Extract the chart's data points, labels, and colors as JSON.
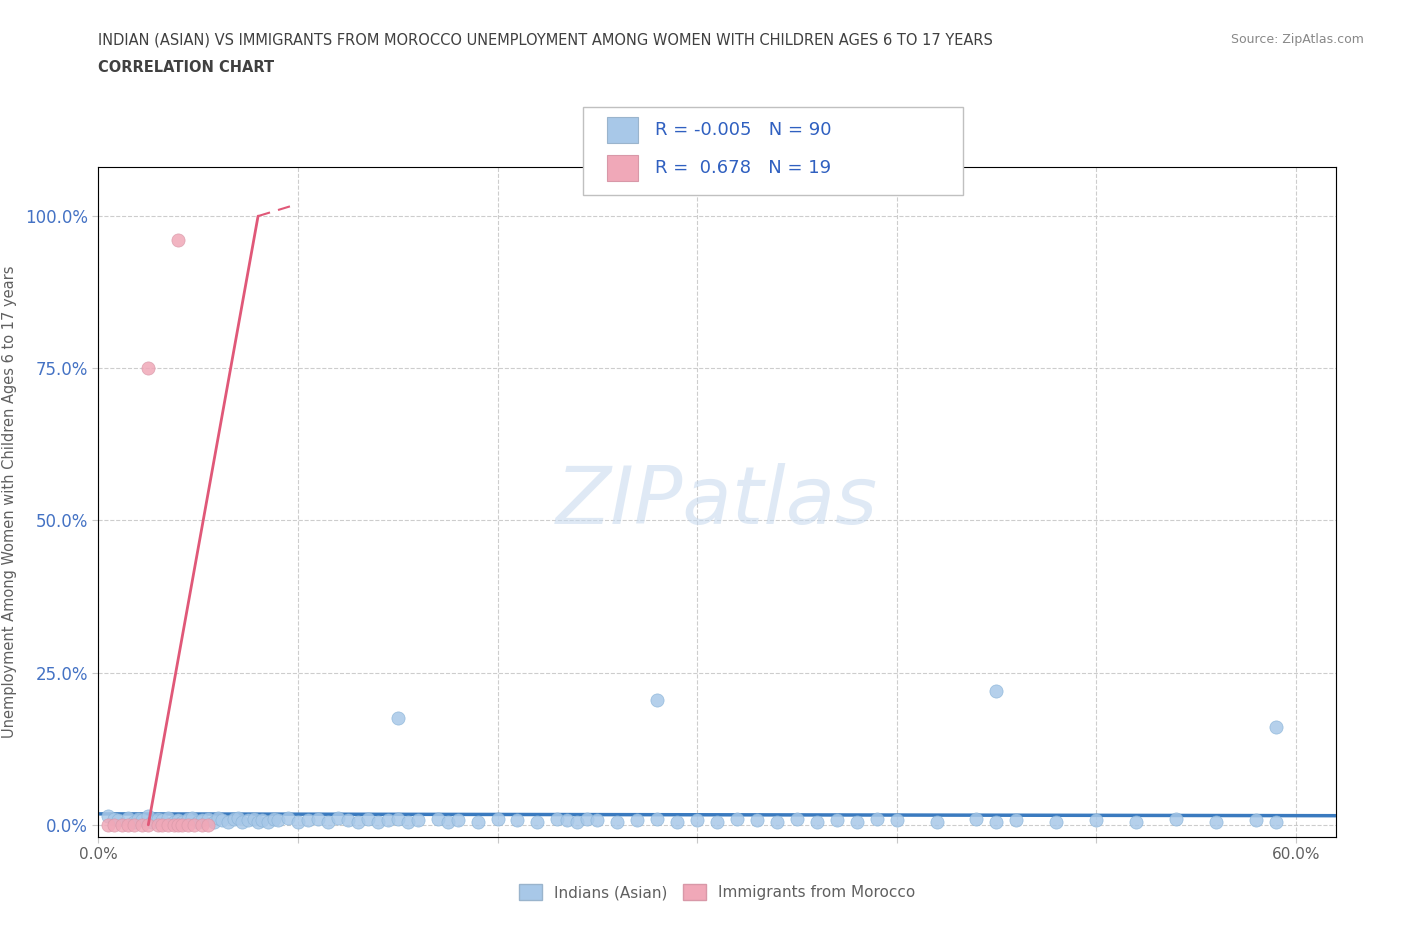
{
  "title_line1": "INDIAN (ASIAN) VS IMMIGRANTS FROM MOROCCO UNEMPLOYMENT AMONG WOMEN WITH CHILDREN AGES 6 TO 17 YEARS",
  "title_line2": "CORRELATION CHART",
  "source_text": "Source: ZipAtlas.com",
  "ylabel": "Unemployment Among Women with Children Ages 6 to 17 years",
  "xlim": [
    0.0,
    0.62
  ],
  "ylim": [
    -0.02,
    1.08
  ],
  "ytick_labels": [
    "0.0%",
    "25.0%",
    "50.0%",
    "75.0%",
    "100.0%"
  ],
  "ytick_values": [
    0.0,
    0.25,
    0.5,
    0.75,
    1.0
  ],
  "xtick_values": [
    0.0,
    0.1,
    0.2,
    0.3,
    0.4,
    0.5,
    0.6
  ],
  "xtick_labels_show": [
    "0.0%",
    "",
    "",
    "",
    "",
    "",
    "60.0%"
  ],
  "legend_entries": [
    {
      "label": "Indians (Asian)",
      "color": "#aec6e8",
      "R": "-0.005",
      "N": "90"
    },
    {
      "label": "Immigrants from Morocco",
      "color": "#f4b8c4",
      "R": "0.678",
      "N": "19"
    }
  ],
  "watermark": "ZIPatlas",
  "background_color": "#ffffff",
  "grid_color": "#c8c8c8",
  "blue_color": "#a8c8e8",
  "pink_color": "#f0a8b8",
  "blue_line_color": "#3a7abf",
  "pink_line_color": "#e05878",
  "title_color": "#404040",
  "axis_color": "#606060",
  "tick_color": "#4472c4",
  "blue_scatter": {
    "x": [
      0.005,
      0.008,
      0.01,
      0.015,
      0.018,
      0.02,
      0.022,
      0.025,
      0.027,
      0.03,
      0.032,
      0.035,
      0.038,
      0.04,
      0.042,
      0.045,
      0.047,
      0.05,
      0.052,
      0.055,
      0.058,
      0.06,
      0.062,
      0.065,
      0.068,
      0.07,
      0.072,
      0.075,
      0.078,
      0.08,
      0.082,
      0.085,
      0.088,
      0.09,
      0.095,
      0.1,
      0.105,
      0.11,
      0.115,
      0.12,
      0.125,
      0.13,
      0.135,
      0.14,
      0.145,
      0.15,
      0.155,
      0.16,
      0.17,
      0.175,
      0.18,
      0.19,
      0.2,
      0.21,
      0.22,
      0.23,
      0.235,
      0.24,
      0.245,
      0.25,
      0.26,
      0.27,
      0.28,
      0.29,
      0.3,
      0.31,
      0.32,
      0.33,
      0.34,
      0.35,
      0.36,
      0.37,
      0.38,
      0.39,
      0.4,
      0.42,
      0.44,
      0.45,
      0.46,
      0.48,
      0.5,
      0.52,
      0.54,
      0.56,
      0.58,
      0.59,
      0.15,
      0.28,
      0.45,
      0.59
    ],
    "y": [
      0.015,
      0.01,
      0.008,
      0.012,
      0.005,
      0.01,
      0.008,
      0.015,
      0.005,
      0.01,
      0.008,
      0.012,
      0.005,
      0.008,
      0.005,
      0.01,
      0.012,
      0.005,
      0.008,
      0.01,
      0.005,
      0.012,
      0.008,
      0.005,
      0.01,
      0.012,
      0.005,
      0.008,
      0.01,
      0.005,
      0.008,
      0.005,
      0.01,
      0.008,
      0.012,
      0.005,
      0.008,
      0.01,
      0.005,
      0.012,
      0.008,
      0.005,
      0.01,
      0.005,
      0.008,
      0.01,
      0.005,
      0.008,
      0.01,
      0.005,
      0.008,
      0.005,
      0.01,
      0.008,
      0.005,
      0.01,
      0.008,
      0.005,
      0.01,
      0.008,
      0.005,
      0.008,
      0.01,
      0.005,
      0.008,
      0.005,
      0.01,
      0.008,
      0.005,
      0.01,
      0.005,
      0.008,
      0.005,
      0.01,
      0.008,
      0.005,
      0.01,
      0.005,
      0.008,
      0.005,
      0.008,
      0.005,
      0.01,
      0.005,
      0.008,
      0.005,
      0.175,
      0.205,
      0.22,
      0.16
    ]
  },
  "pink_scatter": {
    "x": [
      0.005,
      0.008,
      0.012,
      0.015,
      0.018,
      0.022,
      0.025,
      0.03,
      0.032,
      0.035,
      0.038,
      0.04,
      0.042,
      0.045,
      0.048,
      0.052,
      0.055,
      0.025,
      0.04
    ],
    "y": [
      0.0,
      0.0,
      0.0,
      0.0,
      0.0,
      0.0,
      0.0,
      0.0,
      0.0,
      0.0,
      0.0,
      0.0,
      0.0,
      0.0,
      0.0,
      0.0,
      0.0,
      0.75,
      0.96
    ]
  },
  "blue_line": {
    "x": [
      0.0,
      0.62
    ],
    "y": [
      0.018,
      0.015
    ]
  },
  "pink_line_solid": {
    "x": [
      0.025,
      0.08
    ],
    "y": [
      0.0,
      1.0
    ]
  },
  "pink_line_dashed": {
    "x": [
      0.08,
      0.1
    ],
    "y": [
      1.0,
      1.02
    ]
  }
}
